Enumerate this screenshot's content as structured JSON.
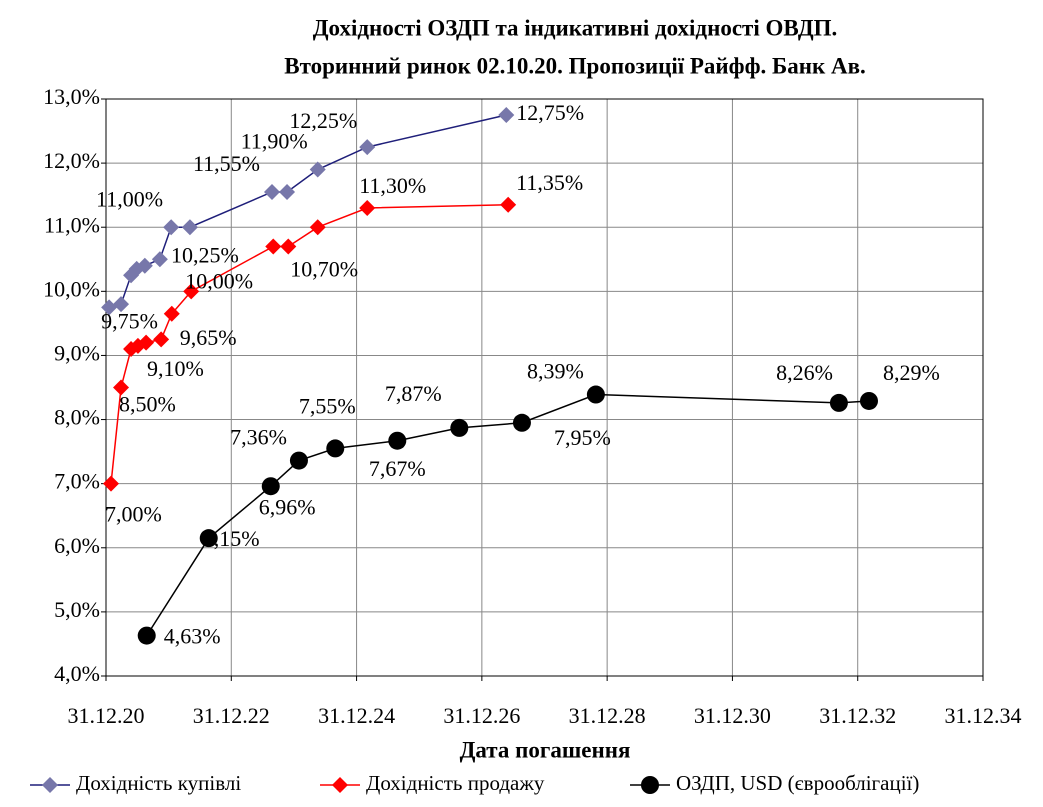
{
  "chart_data": {
    "type": "line",
    "title": "Дохідності ОЗДП та індикативні дохідності ОВДП.",
    "subtitle": "Вторинний ринок 02.10.20. Пропозиції Райфф. Банк Ав.",
    "x_label": "Дата погашення",
    "xlim": [
      2021,
      2035
    ],
    "xticks": [
      {
        "value": 2021,
        "label": "31.12.20"
      },
      {
        "value": 2023,
        "label": "31.12.22"
      },
      {
        "value": 2025,
        "label": "31.12.24"
      },
      {
        "value": 2027,
        "label": "31.12.26"
      },
      {
        "value": 2029,
        "label": "31.12.28"
      },
      {
        "value": 2031,
        "label": "31.12.30"
      },
      {
        "value": 2033,
        "label": "31.12.32"
      },
      {
        "value": 2035,
        "label": "31.12.34"
      }
    ],
    "ylim": [
      4,
      13
    ],
    "yticks": [
      {
        "value": 4,
        "label": "4,0%"
      },
      {
        "value": 5,
        "label": "5,0%"
      },
      {
        "value": 6,
        "label": "6,0%"
      },
      {
        "value": 7,
        "label": "7,0%"
      },
      {
        "value": 8,
        "label": "8,0%"
      },
      {
        "value": 9,
        "label": "9,0%"
      },
      {
        "value": 10,
        "label": "10,0%"
      },
      {
        "value": 11,
        "label": "11,0%"
      },
      {
        "value": 12,
        "label": "12,0%"
      },
      {
        "value": 13,
        "label": "13,0%"
      }
    ],
    "grid": true,
    "legend": "bottom",
    "series": [
      {
        "name": "Дохідність купівлі",
        "color": "#1f1f7a",
        "marker_color": "#7777aa",
        "marker": "diamond",
        "x": [
          2021.05,
          2021.24,
          2021.4,
          2021.49,
          2021.62,
          2021.86,
          2022.04,
          2022.34,
          2023.65,
          2023.89,
          2024.38,
          2025.17,
          2027.39
        ],
        "values": [
          9.75,
          9.8,
          10.25,
          10.35,
          10.4,
          10.5,
          11.0,
          11.0,
          11.55,
          11.55,
          11.9,
          12.25,
          12.75
        ],
        "value_labels": [
          "9,75%",
          null,
          "10,25%",
          null,
          null,
          null,
          "11,00%",
          null,
          "11,55%",
          null,
          "11,90%",
          "12,25%",
          "12,75%"
        ]
      },
      {
        "name": "Дохідність продажу",
        "color": "#ff0000",
        "marker_color": "#ff0000",
        "marker": "diamond",
        "x": [
          2021.08,
          2021.24,
          2021.4,
          2021.51,
          2021.64,
          2021.88,
          2022.05,
          2022.36,
          2023.67,
          2023.91,
          2024.38,
          2025.17,
          2027.42
        ],
        "values": [
          7.0,
          8.5,
          9.1,
          9.15,
          9.2,
          9.25,
          9.65,
          10.0,
          10.7,
          10.7,
          11.0,
          11.3,
          11.35
        ],
        "value_labels": [
          "7,00%",
          "8,50%",
          "9,10%",
          null,
          null,
          null,
          "9,65%",
          "10,00%",
          null,
          "10,70%",
          null,
          "11,30%",
          "11,35%"
        ]
      },
      {
        "name": "ОЗДП, USD (єврооблігації)",
        "color": "#000000",
        "marker_color": "#000000",
        "marker": "circle",
        "x": [
          2021.65,
          2022.64,
          2023.63,
          2024.08,
          2024.66,
          2025.65,
          2026.64,
          2027.64,
          2028.82,
          2032.7,
          2033.18
        ],
        "values": [
          4.63,
          6.15,
          6.96,
          7.36,
          7.55,
          7.67,
          7.87,
          7.95,
          8.39,
          8.26,
          8.29
        ],
        "value_labels": [
          "4,63%",
          "6,15%",
          "6,96%",
          "7,36%",
          "7,55%",
          "7,67%",
          "7,87%",
          "7,95%",
          "8,39%",
          "8,26%",
          "8,29%"
        ]
      }
    ]
  }
}
